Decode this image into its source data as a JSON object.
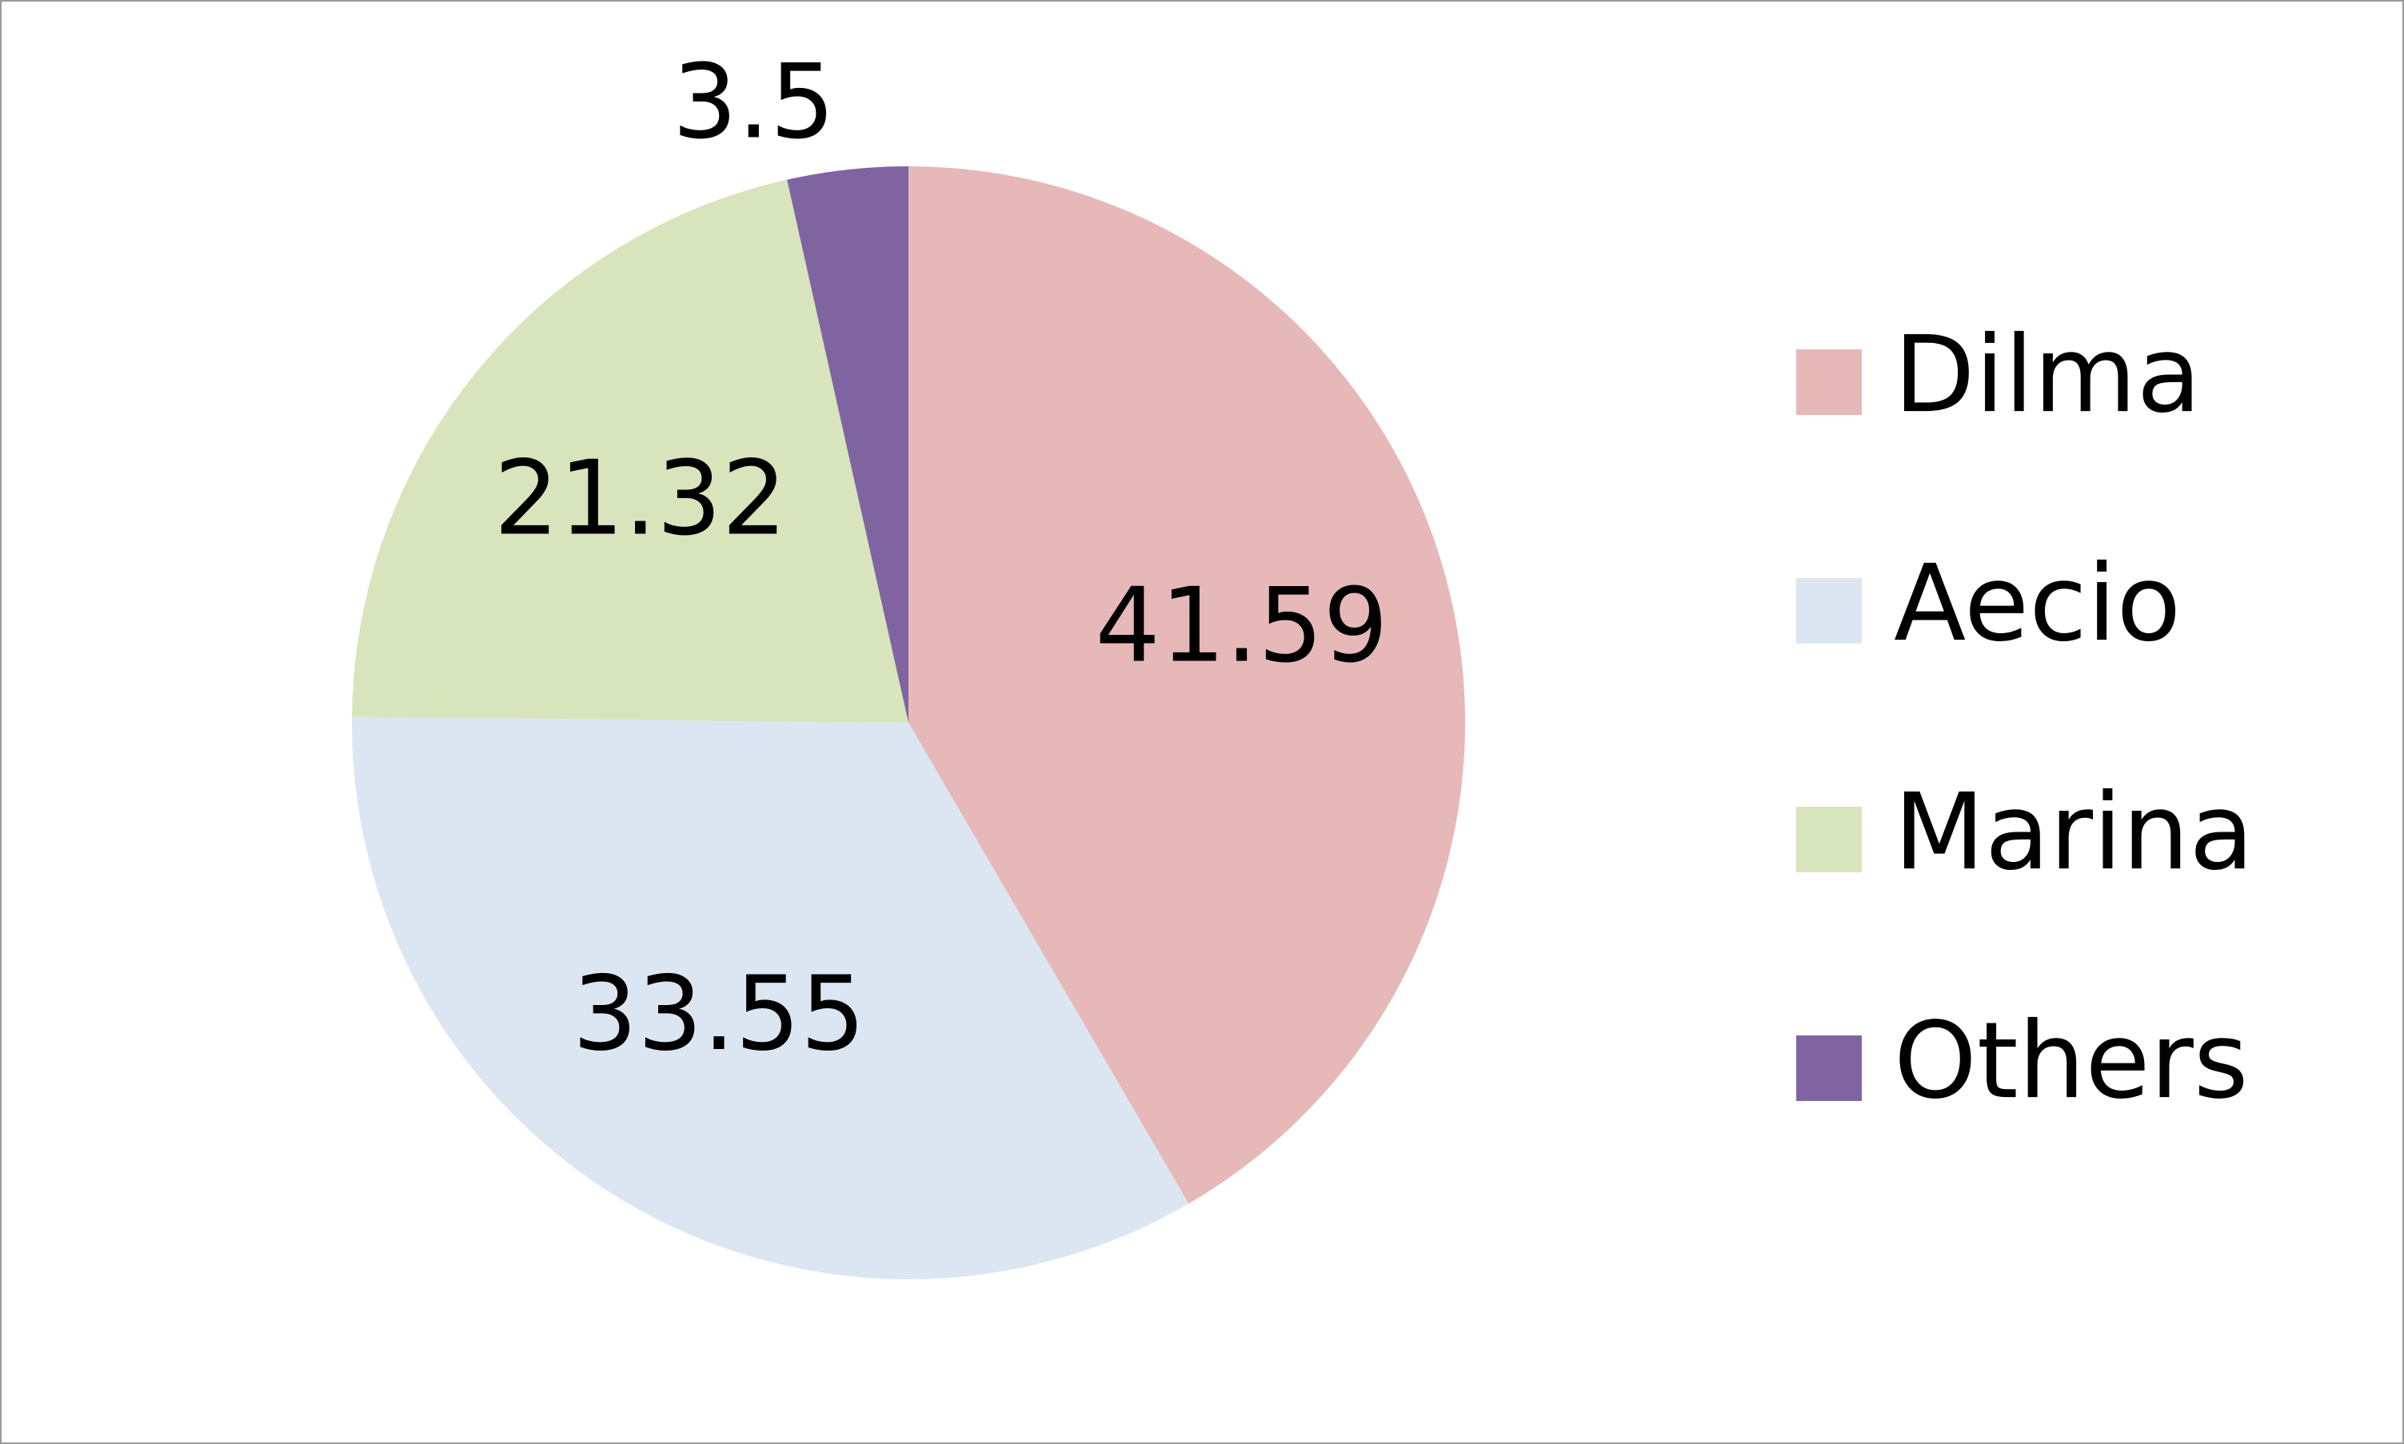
{
  "chart_data": {
    "type": "pie",
    "title": "",
    "categories": [
      "Dilma",
      "Aecio",
      "Marina",
      "Others"
    ],
    "values": [
      41.59,
      33.55,
      21.32,
      3.5
    ],
    "data_labels": [
      "41.59",
      "33.55",
      "21.32",
      "3.5"
    ],
    "colors": [
      "#e6b8b8",
      "#dce6f2",
      "#d8e4bc",
      "#8064a2"
    ],
    "start_angle_deg": 0,
    "direction": "clockwise",
    "legend": {
      "placement": "right",
      "entries": [
        "Dilma",
        "Aecio",
        "Marina",
        "Others"
      ]
    }
  }
}
